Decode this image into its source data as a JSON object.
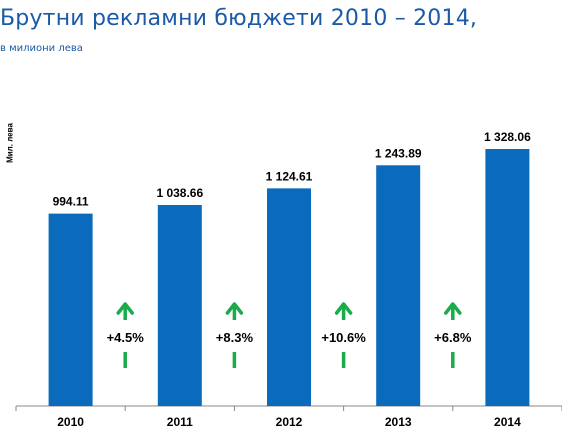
{
  "title": "Брутни рекламни бюджети 2010 – 2014,",
  "subtitle": "в милиони лева",
  "colors": {
    "bar": "#0a6bbd",
    "arrow": "#1aab4b",
    "title": "#1a5aa6",
    "axis": "#888888"
  },
  "chart_data": {
    "type": "bar",
    "title": "Брутни рекламни бюджети 2010 – 2014,",
    "subtitle": "в милиони лева",
    "xlabel": "",
    "ylabel": "Мил. лева",
    "categories": [
      "2010",
      "2011",
      "2012",
      "2013",
      "2014"
    ],
    "values": [
      994.11,
      1038.66,
      1124.61,
      1243.89,
      1328.06
    ],
    "value_labels": [
      "994.11",
      "1 038.66",
      "1 124.61",
      "1 243.89",
      "1 328.06"
    ],
    "changes": [
      "+4.5%",
      "+8.3%",
      "+10.6%",
      "+6.8%"
    ],
    "grid": false
  }
}
